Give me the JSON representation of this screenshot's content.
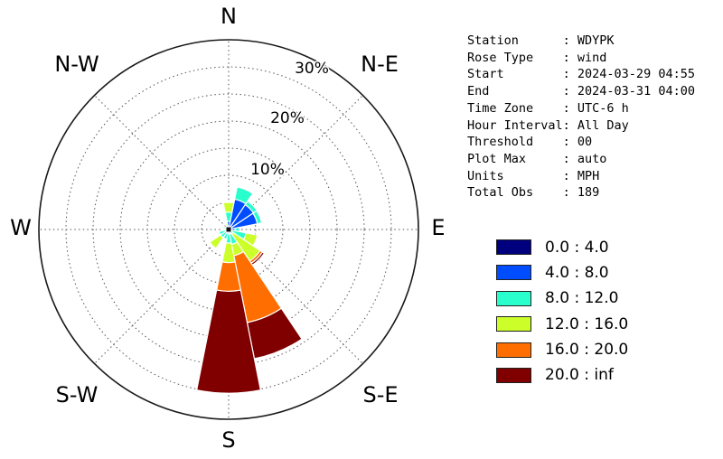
{
  "info_panel": {
    "rows": [
      {
        "label": "Station",
        "value": "WDYPK"
      },
      {
        "label": "Rose Type",
        "value": "wind"
      },
      {
        "label": "Start",
        "value": "2024-03-29 04:55"
      },
      {
        "label": "End",
        "value": "2024-03-31 04:00"
      },
      {
        "label": "Time Zone",
        "value": "UTC-6 h"
      },
      {
        "label": "Hour Interval",
        "value": "All Day"
      },
      {
        "label": "Threshold",
        "value": "00"
      },
      {
        "label": "Plot Max",
        "value": "auto"
      },
      {
        "label": "Units",
        "value": "MPH"
      },
      {
        "label": "Total Obs",
        "value": "189"
      }
    ]
  },
  "legend": {
    "items": [
      {
        "label": "0.0 : 4.0",
        "color": "#00007F"
      },
      {
        "label": "4.0 : 8.0",
        "color": "#004DFF"
      },
      {
        "label": "8.0 : 12.0",
        "color": "#29FFCC"
      },
      {
        "label": "12.0 : 16.0",
        "color": "#CCFF29"
      },
      {
        "label": "16.0 : 20.0",
        "color": "#FF6E00"
      },
      {
        "label": "20.0 : inf",
        "color": "#800000"
      }
    ]
  },
  "chart_data": {
    "type": "windrose-stacked-polar-bar",
    "title": "",
    "units": "percent of total observations",
    "r_max": 35,
    "r_grid_step": 5,
    "r_tick_labels": [
      "10%",
      "20%",
      "30%"
    ],
    "r_tick_values": [
      10,
      20,
      30
    ],
    "grid": "dotted rings every 5%, dotted spokes every 45 degrees, solid outer ring at 35%",
    "legend_position": "right",
    "compass_labels": [
      "N",
      "N-E",
      "E",
      "S-E",
      "S",
      "S-W",
      "W",
      "N-W"
    ],
    "direction_bins": [
      "N",
      "NNE",
      "NE",
      "ENE",
      "E",
      "ESE",
      "SE",
      "SSE",
      "S",
      "SSW",
      "SW",
      "WSW",
      "W",
      "WNW",
      "NW",
      "NNW"
    ],
    "sector_width_deg": 22.5,
    "speed_bin_colors": [
      "#00007F",
      "#004DFF",
      "#29FFCC",
      "#CCFF29",
      "#FF6E00",
      "#800000"
    ],
    "series": [
      {
        "name": "0.0 : 4.0",
        "values": [
          0.3,
          0.5,
          0.5,
          0.5,
          0.3,
          0.2,
          0.2,
          0.3,
          0.3,
          0.2,
          0.2,
          0.2,
          0.2,
          0.2,
          0.0,
          0.2
        ]
      },
      {
        "name": "4.0 : 8.0",
        "values": [
          1.2,
          5.2,
          5.0,
          4.9,
          0.9,
          0.4,
          0.3,
          0.5,
          0.5,
          0.3,
          0.4,
          0.3,
          0.2,
          0.3,
          0.0,
          0.3
        ]
      },
      {
        "name": "8.0 : 12.0",
        "values": [
          1.7,
          2.3,
          0.8,
          0.8,
          0.8,
          2.7,
          0.5,
          2.0,
          1.7,
          1.3,
          1.2,
          1.3,
          0.3,
          0.4,
          0.0,
          0.4
        ]
      },
      {
        "name": "12.0 : 16.0",
        "values": [
          1.8,
          0.0,
          0.0,
          0.0,
          0.0,
          2.1,
          6.0,
          2.1,
          3.6,
          0.0,
          2.4,
          0.0,
          0.3,
          0.3,
          0.0,
          0.3
        ]
      },
      {
        "name": "16.0 : 20.0",
        "values": [
          0.0,
          0.0,
          0.0,
          0.0,
          0.0,
          0.0,
          0.5,
          12.6,
          5.3,
          0.0,
          0.0,
          0.0,
          0.0,
          0.0,
          0.0,
          0.0
        ]
      },
      {
        "name": "20.0 : inf",
        "values": [
          0.0,
          0.0,
          0.0,
          0.0,
          0.0,
          0.0,
          0.4,
          6.8,
          18.8,
          0.0,
          0.0,
          0.0,
          0.0,
          0.0,
          0.0,
          0.0
        ]
      }
    ]
  }
}
